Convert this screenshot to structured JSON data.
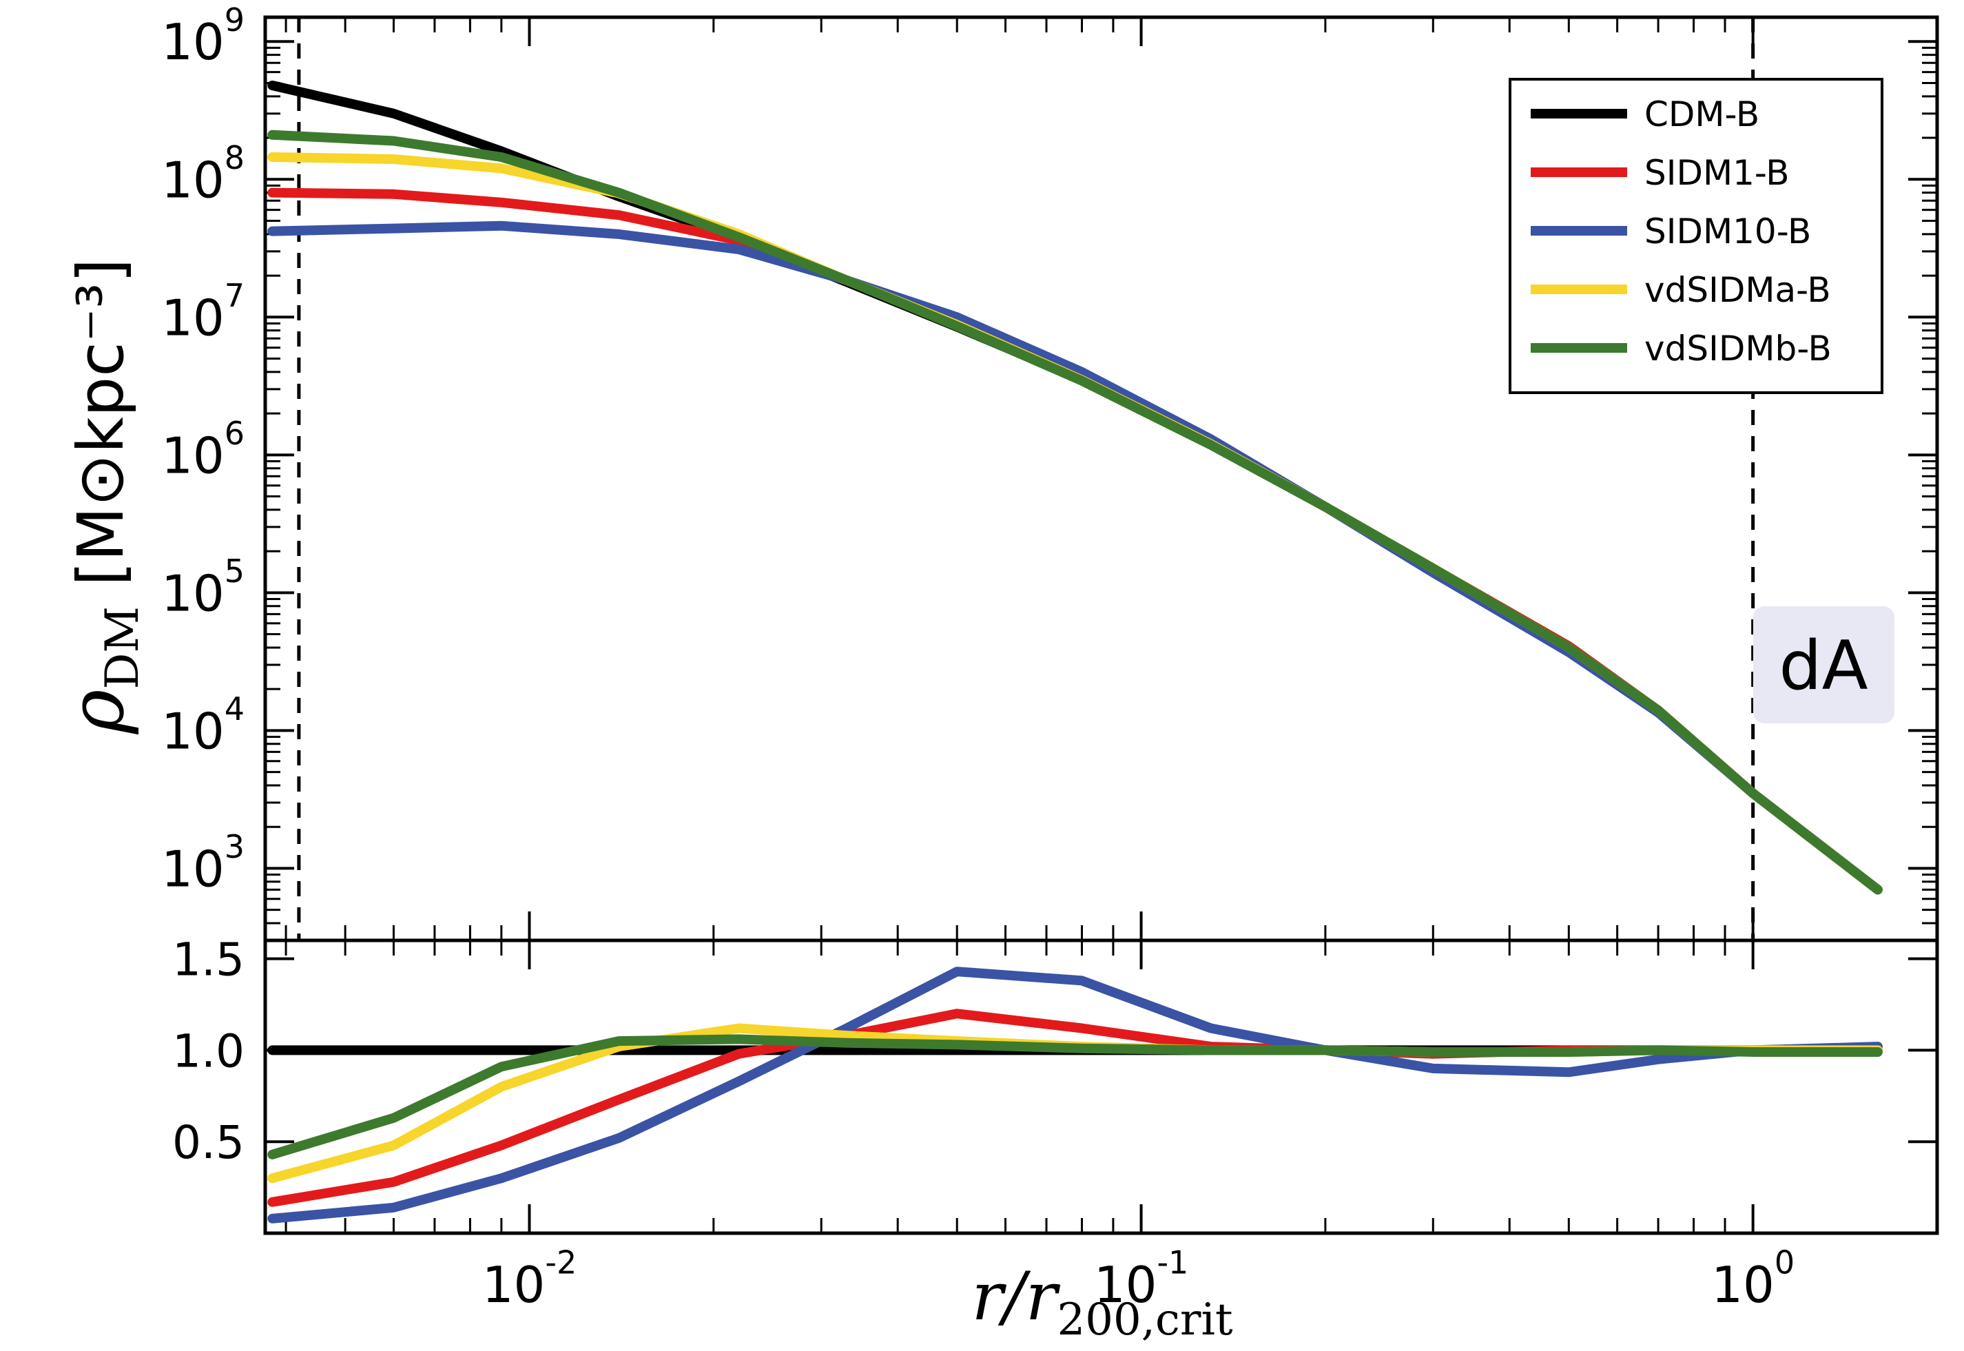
{
  "chart_data": [
    {
      "type": "line",
      "panel": "top",
      "xscale": "log",
      "yscale": "log",
      "xlim": [
        0.0037,
        2.0
      ],
      "ylim": [
        300,
        1500000000
      ],
      "ylabel_main": "ρ",
      "ylabel_sub": "DM",
      "ylabel_units": "[M⊙kpc⁻³]",
      "ytick_values": [
        1000,
        10000,
        100000,
        1000000,
        10000000,
        100000000,
        1000000000
      ],
      "ytick_labels": [
        {
          "base": "10",
          "exp": "3"
        },
        {
          "base": "10",
          "exp": "4"
        },
        {
          "base": "10",
          "exp": "5"
        },
        {
          "base": "10",
          "exp": "6"
        },
        {
          "base": "10",
          "exp": "7"
        },
        {
          "base": "10",
          "exp": "8"
        },
        {
          "base": "10",
          "exp": "9"
        }
      ],
      "vlines": [
        0.0042,
        1.0
      ],
      "annotation": "dA",
      "legend_position": "top-right",
      "x": [
        0.0038,
        0.006,
        0.009,
        0.014,
        0.022,
        0.033,
        0.05,
        0.08,
        0.13,
        0.2,
        0.3,
        0.5,
        0.7,
        1.0,
        1.6
      ],
      "series": [
        {
          "name": "CDM-B",
          "color": "#000000",
          "values": [
            480000000,
            300000000,
            160000000,
            75000000,
            37000000,
            18000000,
            8500000,
            3500000,
            1200000,
            420000,
            150000,
            40000,
            14000,
            3500,
            700
          ]
        },
        {
          "name": "SIDM1-B",
          "color": "#e31a1c",
          "values": [
            80000000,
            78000000,
            68000000,
            55000000,
            36000000,
            18500000,
            9300000,
            3700000,
            1230000,
            420000,
            150000,
            41000,
            14000,
            3500,
            700
          ]
        },
        {
          "name": "SIDM10-B",
          "color": "#3a53a4",
          "values": [
            42000000,
            44000000,
            46000000,
            40000000,
            31000000,
            18500000,
            10000000,
            4000000,
            1300000,
            420000,
            140000,
            37000,
            13500,
            3500,
            700
          ]
        },
        {
          "name": "vdSIDMa-B",
          "color": "#f7d52a",
          "values": [
            145000000,
            140000000,
            120000000,
            79000000,
            40000000,
            18500000,
            8800000,
            3500000,
            1200000,
            420000,
            150000,
            40000,
            14000,
            3500,
            700
          ]
        },
        {
          "name": "vdSIDMb-B",
          "color": "#3d7a2e",
          "values": [
            210000000,
            190000000,
            145000000,
            80000000,
            38000000,
            18500000,
            8600000,
            3450000,
            1180000,
            420000,
            150000,
            40000,
            14000,
            3500,
            700
          ]
        }
      ]
    },
    {
      "type": "line",
      "panel": "bottom",
      "xscale": "log",
      "yscale": "linear",
      "xlim": [
        0.0037,
        2.0
      ],
      "ylim": [
        0.0,
        1.6
      ],
      "xlabel_main": "r/r",
      "xlabel_sub": "200,crit",
      "ytick_values": [
        0.5,
        1.0,
        1.5
      ],
      "ytick_labels": [
        "0.5",
        "1.0",
        "1.5"
      ],
      "xtick_values": [
        0.01,
        0.1,
        1.0
      ],
      "xtick_labels": [
        {
          "base": "10",
          "exp": "-2"
        },
        {
          "base": "10",
          "exp": "-1"
        },
        {
          "base": "10",
          "exp": "0"
        }
      ],
      "x": [
        0.0038,
        0.006,
        0.009,
        0.014,
        0.022,
        0.033,
        0.05,
        0.08,
        0.13,
        0.2,
        0.3,
        0.5,
        0.7,
        1.0,
        1.6
      ],
      "series": [
        {
          "name": "CDM-B",
          "color": "#000000",
          "values": [
            1.0,
            1.0,
            1.0,
            1.0,
            1.0,
            1.0,
            1.0,
            1.0,
            1.0,
            1.0,
            1.0,
            1.0,
            1.0,
            1.0,
            1.0
          ]
        },
        {
          "name": "SIDM1-B",
          "color": "#e31a1c",
          "values": [
            0.17,
            0.28,
            0.48,
            0.73,
            0.98,
            1.08,
            1.2,
            1.12,
            1.02,
            1.0,
            0.98,
            1.0,
            1.0,
            1.0,
            1.0
          ]
        },
        {
          "name": "SIDM10-B",
          "color": "#3a53a4",
          "values": [
            0.08,
            0.14,
            0.3,
            0.52,
            0.83,
            1.12,
            1.43,
            1.38,
            1.12,
            1.0,
            0.9,
            0.88,
            0.95,
            1.0,
            1.02
          ]
        },
        {
          "name": "vdSIDMa-B",
          "color": "#f7d52a",
          "values": [
            0.3,
            0.48,
            0.8,
            1.02,
            1.12,
            1.08,
            1.05,
            1.02,
            1.0,
            1.0,
            0.99,
            0.99,
            1.0,
            1.0,
            1.0
          ]
        },
        {
          "name": "vdSIDMb-B",
          "color": "#3d7a2e",
          "values": [
            0.43,
            0.63,
            0.91,
            1.05,
            1.06,
            1.04,
            1.03,
            1.01,
            1.0,
            1.0,
            0.99,
            0.99,
            1.0,
            0.99,
            0.99
          ]
        }
      ]
    }
  ]
}
